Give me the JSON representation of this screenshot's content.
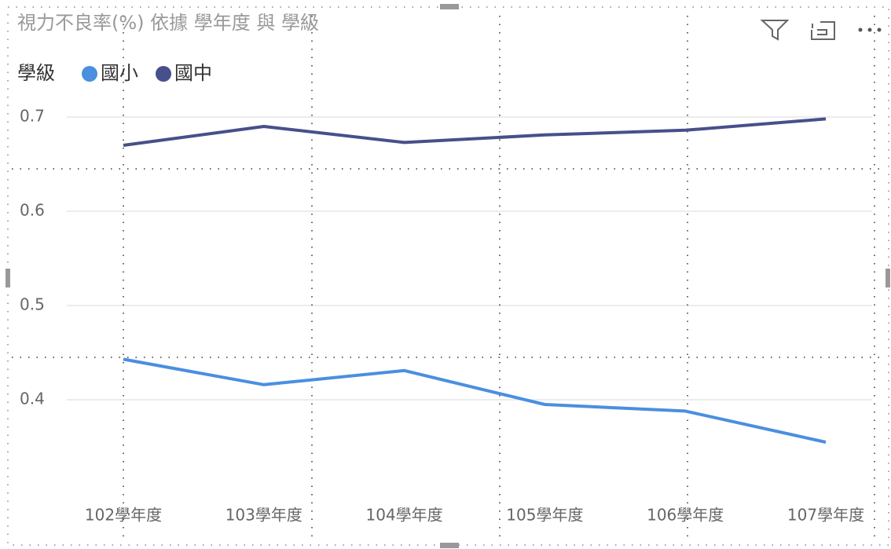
{
  "chart_data": {
    "type": "line",
    "title": "視力不良率(%) 依據 學年度 與 學級",
    "legend_title": "學級",
    "categories": [
      "102學年度",
      "103學年度",
      "104學年度",
      "105學年度",
      "106學年度",
      "107學年度"
    ],
    "series": [
      {
        "name": "國小",
        "color": "#4a8fe0",
        "values": [
          0.443,
          0.416,
          0.431,
          0.395,
          0.388,
          0.355
        ]
      },
      {
        "name": "國中",
        "color": "#46508a",
        "values": [
          0.67,
          0.69,
          0.673,
          0.681,
          0.686,
          0.698
        ]
      }
    ],
    "ylim": [
      0.31,
      0.72
    ],
    "yticks": [
      0.4,
      0.5,
      0.6,
      0.7
    ],
    "grid": true
  }
}
